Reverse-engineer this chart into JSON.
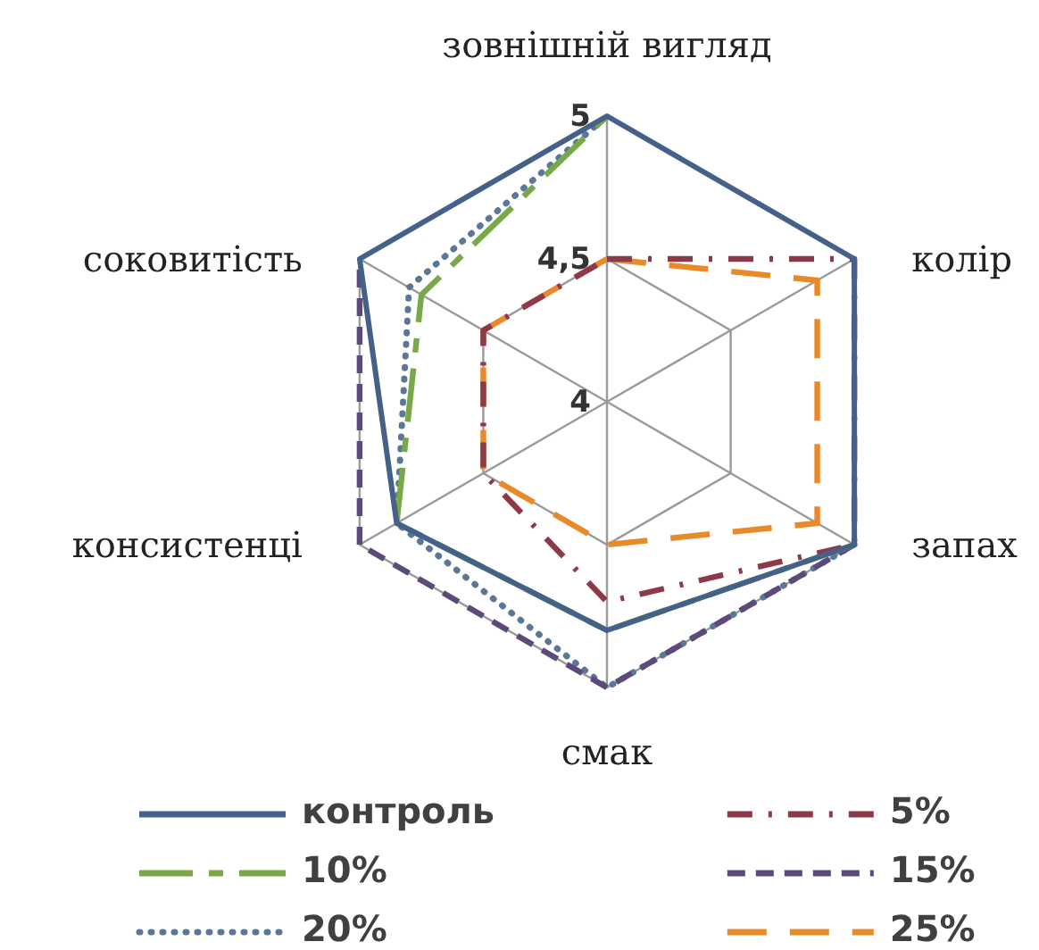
{
  "chart_data": {
    "type": "radar",
    "categories": [
      "зовнішній вигляд",
      "колір",
      "запах",
      "смак",
      "консистенці",
      "соковитість"
    ],
    "ylim": [
      4,
      5
    ],
    "yticks": [
      4,
      {
        "value": 4.5,
        "label": "4,5"
      },
      5
    ],
    "grid": true,
    "legend": "bottom",
    "marker": "none",
    "series": [
      {
        "name": "контроль",
        "color": "#44618a",
        "line_style": "solid",
        "values": [
          5,
          5,
          5,
          4.8,
          4.85,
          5
        ]
      },
      {
        "name": "5%",
        "color": "#8c3a4a",
        "line_style": "dashed",
        "values": [
          4.5,
          5,
          5,
          4.7,
          4.5,
          4.5
        ]
      },
      {
        "name": "10%",
        "color": "#78a848",
        "line_style": "dashed",
        "values": [
          5,
          null,
          5,
          4.8,
          4.85,
          4.75
        ]
      },
      {
        "name": "15%",
        "color": "#5c4a7a",
        "line_style": "dashed",
        "values": [
          null,
          null,
          5,
          5,
          5,
          5
        ]
      },
      {
        "name": "20%",
        "color": "#5a7896",
        "line_style": "dotted",
        "values": [
          5,
          null,
          5,
          5,
          4.85,
          4.8
        ]
      },
      {
        "name": "25%",
        "color": "#e8892a",
        "line_style": "dashed",
        "values": [
          4.5,
          4.85,
          4.85,
          4.5,
          4.5,
          4.5
        ]
      }
    ]
  }
}
